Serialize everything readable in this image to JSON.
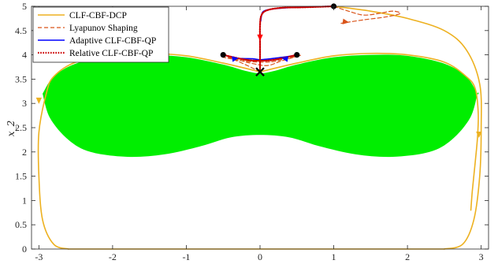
{
  "chart_data": {
    "type": "line",
    "ylabel": "x_2",
    "xlim": [
      -3.1,
      3.1
    ],
    "ylim": [
      0,
      5
    ],
    "x_ticks": [
      "-3",
      "-2",
      "-1",
      "0",
      "1",
      "2",
      "3"
    ],
    "y_ticks": [
      "0",
      "0.5",
      "1",
      "1.5",
      "2",
      "2.5",
      "3",
      "3.5",
      "4",
      "4.5",
      "5"
    ],
    "legend_position": "top-left",
    "colors": {
      "region": "#00ee00",
      "clf_cbf_dcp": "#edb120",
      "lyapunov": "#d95319",
      "adaptive": "#0000ff",
      "relative": "#cc0000",
      "arrows": "#ff0000"
    },
    "region": {
      "upper": [
        [
          -2.95,
          3.2
        ],
        [
          -2.8,
          3.55
        ],
        [
          -2.5,
          3.82
        ],
        [
          -2.0,
          3.98
        ],
        [
          -1.5,
          4.0
        ],
        [
          -1.0,
          3.95
        ],
        [
          -0.5,
          3.8
        ],
        [
          -0.2,
          3.67
        ],
        [
          0.0,
          3.62
        ],
        [
          0.2,
          3.67
        ],
        [
          0.5,
          3.8
        ],
        [
          1.0,
          3.95
        ],
        [
          1.5,
          4.0
        ],
        [
          2.0,
          3.98
        ],
        [
          2.5,
          3.82
        ],
        [
          2.8,
          3.55
        ],
        [
          2.95,
          3.2
        ]
      ],
      "lower": [
        [
          2.95,
          3.2
        ],
        [
          2.85,
          2.7
        ],
        [
          2.6,
          2.25
        ],
        [
          2.3,
          2.0
        ],
        [
          1.8,
          1.9
        ],
        [
          1.3,
          1.95
        ],
        [
          0.8,
          2.12
        ],
        [
          0.4,
          2.3
        ],
        [
          0.0,
          2.35
        ],
        [
          -0.4,
          2.3
        ],
        [
          -0.8,
          2.12
        ],
        [
          -1.3,
          1.95
        ],
        [
          -1.8,
          1.9
        ],
        [
          -2.3,
          2.0
        ],
        [
          -2.6,
          2.25
        ],
        [
          -2.85,
          2.7
        ],
        [
          -2.95,
          3.2
        ]
      ]
    },
    "series": [
      {
        "name": "CLF-CBF-DCP",
        "style": "solid",
        "paths": [
          [
            [
              1.0,
              5.0
            ],
            [
              1.5,
              4.9
            ],
            [
              2.0,
              4.75
            ],
            [
              2.5,
              4.5
            ],
            [
              2.8,
              4.1
            ],
            [
              2.98,
              3.4
            ],
            [
              3.0,
              2.5
            ],
            [
              2.98,
              1.5
            ],
            [
              2.9,
              0.6
            ],
            [
              2.75,
              0.1
            ],
            [
              2.5,
              0.0
            ]
          ],
          [
            [
              0.0,
              3.65
            ],
            [
              -0.5,
              3.83
            ],
            [
              -1.0,
              3.98
            ],
            [
              -1.5,
              4.03
            ],
            [
              -2.0,
              4.0
            ],
            [
              -2.5,
              3.85
            ],
            [
              -2.8,
              3.55
            ],
            [
              -2.9,
              3.2
            ],
            [
              -3.0,
              2.4
            ],
            [
              -3.0,
              1.5
            ],
            [
              -2.95,
              0.6
            ],
            [
              -2.8,
              0.1
            ],
            [
              -2.6,
              0.0
            ]
          ],
          [
            [
              -2.6,
              0.0
            ],
            [
              2.5,
              0.0
            ]
          ],
          [
            [
              0.0,
              3.65
            ],
            [
              0.5,
              3.83
            ],
            [
              1.0,
              3.98
            ],
            [
              1.5,
              4.03
            ],
            [
              2.0,
              4.0
            ],
            [
              2.5,
              3.85
            ],
            [
              2.8,
              3.55
            ],
            [
              2.92,
              3.3
            ],
            [
              2.96,
              2.8
            ],
            [
              2.95,
              2.3
            ],
            [
              2.92,
              1.8
            ],
            [
              2.88,
              1.2
            ],
            [
              2.86,
              0.8
            ]
          ]
        ]
      },
      {
        "name": "Lyapunov Shaping",
        "style": "dashed",
        "paths": [
          [
            [
              1.0,
              5.0
            ],
            [
              1.2,
              4.9
            ],
            [
              1.4,
              4.82
            ],
            [
              1.6,
              4.85
            ],
            [
              1.8,
              4.9
            ],
            [
              1.9,
              4.85
            ],
            [
              1.7,
              4.78
            ],
            [
              1.4,
              4.72
            ],
            [
              1.1,
              4.65
            ]
          ],
          [
            [
              0.0,
              3.65
            ],
            [
              -0.2,
              3.8
            ],
            [
              -0.45,
              3.97
            ],
            [
              -0.25,
              3.88
            ],
            [
              -0.1,
              3.82
            ],
            [
              0.1,
              3.78
            ],
            [
              0.3,
              3.88
            ],
            [
              0.55,
              3.99
            ],
            [
              0.3,
              3.9
            ],
            [
              0.1,
              3.85
            ],
            [
              -0.2,
              3.87
            ],
            [
              -0.5,
              3.95
            ]
          ]
        ]
      },
      {
        "name": "Adaptive CLF-CBF-QP",
        "style": "solid",
        "paths": [
          [
            [
              1.0,
              5.0
            ],
            [
              0.5,
              4.98
            ],
            [
              0.2,
              4.95
            ],
            [
              0.05,
              4.9
            ],
            [
              0.02,
              4.8
            ],
            [
              0.01,
              4.7
            ]
          ],
          [
            [
              -0.5,
              4.0
            ],
            [
              -0.3,
              3.93
            ],
            [
              -0.1,
              3.92
            ],
            [
              0.0,
              3.9
            ],
            [
              0.2,
              3.93
            ],
            [
              0.45,
              3.98
            ]
          ]
        ]
      },
      {
        "name": "Relative CLF-CBF-QP",
        "style": "dotted",
        "paths": [
          [
            [
              1.0,
              5.0
            ],
            [
              0.6,
              4.98
            ],
            [
              0.3,
              4.97
            ],
            [
              0.1,
              4.92
            ],
            [
              0.02,
              4.82
            ],
            [
              0.0,
              4.6
            ],
            [
              0.0,
              4.2
            ],
            [
              0.0,
              3.9
            ],
            [
              0.0,
              3.65
            ]
          ],
          [
            [
              -0.5,
              4.0
            ],
            [
              -0.2,
              3.9
            ],
            [
              0.0,
              3.88
            ],
            [
              0.2,
              3.9
            ],
            [
              0.5,
              4.0
            ]
          ]
        ]
      }
    ],
    "start_points": [
      [
        1.0,
        5.0
      ],
      [
        -0.5,
        4.0
      ],
      [
        0.5,
        4.0
      ]
    ],
    "target": [
      0.0,
      3.65
    ]
  }
}
